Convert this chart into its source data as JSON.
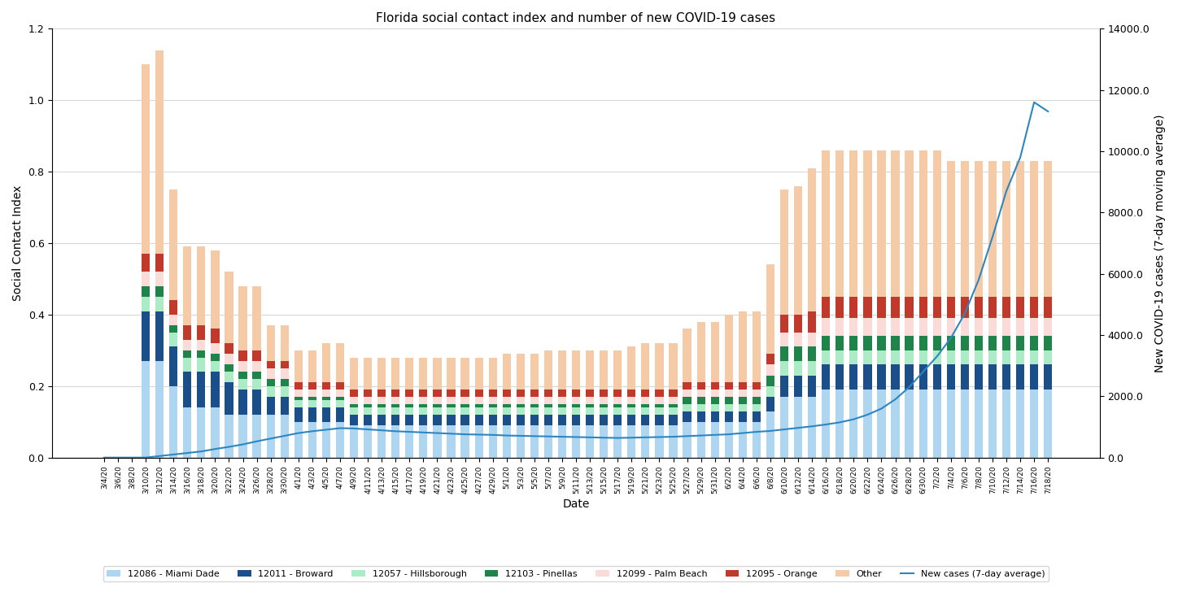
{
  "title": "Florida social contact index and number of new COVID-19 cases",
  "xlabel": "Date",
  "ylabel_left": "Social Contact Index",
  "ylabel_right": "New COVID-19 cases (7-day moving average)",
  "ylim_left": [
    0,
    1.2
  ],
  "ylim_right": [
    0,
    14000.0
  ],
  "yticks_left": [
    0,
    0.2,
    0.4,
    0.6,
    0.8,
    1.0,
    1.2
  ],
  "yticks_right": [
    0.0,
    2000.0,
    4000.0,
    6000.0,
    8000.0,
    10000.0,
    12000.0,
    14000.0
  ],
  "colors": {
    "miami_dade": "#AED6F1",
    "broward": "#1B4F8A",
    "hillsborough": "#ABEBC6",
    "pinellas": "#1E8449",
    "palm_beach": "#FADBD8",
    "orange": "#C0392B",
    "other": "#F5CBA7",
    "line": "#2E86C1"
  },
  "legend_labels": [
    "12086 - Miami Dade",
    "12011 - Broward",
    "12057 - Hillsborough",
    "12103 - Pinellas",
    "12099 - Palm Beach",
    "12095 - Orange",
    "Other",
    "New cases (7-day average)"
  ],
  "dates": [
    "3/4/20",
    "3/6/20",
    "3/8/20",
    "3/10/20",
    "3/12/20",
    "3/14/20",
    "3/16/20",
    "3/18/20",
    "3/20/20",
    "3/22/20",
    "3/24/20",
    "3/26/20",
    "3/28/20",
    "3/30/20",
    "4/1/20",
    "4/3/20",
    "4/5/20",
    "4/7/20",
    "4/9/20",
    "4/11/20",
    "4/13/20",
    "4/15/20",
    "4/17/20",
    "4/19/20",
    "4/21/20",
    "4/23/20",
    "4/25/20",
    "4/27/20",
    "4/29/20",
    "5/1/20",
    "5/3/20",
    "5/5/20",
    "5/7/20",
    "5/9/20",
    "5/11/20",
    "5/13/20",
    "5/15/20",
    "5/17/20",
    "5/19/20",
    "5/21/20",
    "5/23/20",
    "5/25/20",
    "5/27/20",
    "5/29/20",
    "5/31/20",
    "6/2/20",
    "6/4/20",
    "6/6/20",
    "6/8/20",
    "6/10/20",
    "6/12/20",
    "6/14/20",
    "6/16/20",
    "6/18/20",
    "6/20/20",
    "6/22/20",
    "6/24/20",
    "6/26/20",
    "6/28/20",
    "6/30/20",
    "7/2/20",
    "7/4/20",
    "7/6/20",
    "7/8/20",
    "7/10/20",
    "7/12/20",
    "7/14/20",
    "7/16/20",
    "7/18/20"
  ],
  "miami_dade": [
    0,
    0,
    0,
    0.27,
    0.27,
    0.2,
    0.14,
    0.14,
    0.14,
    0.12,
    0.12,
    0.12,
    0.12,
    0.12,
    0.1,
    0.1,
    0.1,
    0.1,
    0.09,
    0.09,
    0.09,
    0.09,
    0.09,
    0.09,
    0.09,
    0.09,
    0.09,
    0.09,
    0.09,
    0.09,
    0.09,
    0.09,
    0.09,
    0.09,
    0.09,
    0.09,
    0.09,
    0.09,
    0.09,
    0.09,
    0.09,
    0.09,
    0.1,
    0.1,
    0.1,
    0.1,
    0.1,
    0.1,
    0.13,
    0.17,
    0.17,
    0.17,
    0.19,
    0.19,
    0.19,
    0.19,
    0.19,
    0.19,
    0.19,
    0.19,
    0.19,
    0.19,
    0.19,
    0.19,
    0.19,
    0.19,
    0.19,
    0.19,
    0.19
  ],
  "broward": [
    0,
    0,
    0,
    0.14,
    0.14,
    0.11,
    0.1,
    0.1,
    0.1,
    0.09,
    0.07,
    0.07,
    0.05,
    0.05,
    0.04,
    0.04,
    0.04,
    0.04,
    0.03,
    0.03,
    0.03,
    0.03,
    0.03,
    0.03,
    0.03,
    0.03,
    0.03,
    0.03,
    0.03,
    0.03,
    0.03,
    0.03,
    0.03,
    0.03,
    0.03,
    0.03,
    0.03,
    0.03,
    0.03,
    0.03,
    0.03,
    0.03,
    0.03,
    0.03,
    0.03,
    0.03,
    0.03,
    0.03,
    0.04,
    0.06,
    0.06,
    0.06,
    0.07,
    0.07,
    0.07,
    0.07,
    0.07,
    0.07,
    0.07,
    0.07,
    0.07,
    0.07,
    0.07,
    0.07,
    0.07,
    0.07,
    0.07,
    0.07,
    0.07
  ],
  "hillsborough": [
    0,
    0,
    0,
    0.04,
    0.04,
    0.04,
    0.04,
    0.04,
    0.03,
    0.03,
    0.03,
    0.03,
    0.03,
    0.03,
    0.02,
    0.02,
    0.02,
    0.02,
    0.02,
    0.02,
    0.02,
    0.02,
    0.02,
    0.02,
    0.02,
    0.02,
    0.02,
    0.02,
    0.02,
    0.02,
    0.02,
    0.02,
    0.02,
    0.02,
    0.02,
    0.02,
    0.02,
    0.02,
    0.02,
    0.02,
    0.02,
    0.02,
    0.02,
    0.02,
    0.02,
    0.02,
    0.02,
    0.02,
    0.03,
    0.04,
    0.04,
    0.04,
    0.04,
    0.04,
    0.04,
    0.04,
    0.04,
    0.04,
    0.04,
    0.04,
    0.04,
    0.04,
    0.04,
    0.04,
    0.04,
    0.04,
    0.04,
    0.04,
    0.04
  ],
  "pinellas": [
    0,
    0,
    0,
    0.03,
    0.03,
    0.02,
    0.02,
    0.02,
    0.02,
    0.02,
    0.02,
    0.02,
    0.02,
    0.02,
    0.01,
    0.01,
    0.01,
    0.01,
    0.01,
    0.01,
    0.01,
    0.01,
    0.01,
    0.01,
    0.01,
    0.01,
    0.01,
    0.01,
    0.01,
    0.01,
    0.01,
    0.01,
    0.01,
    0.01,
    0.01,
    0.01,
    0.01,
    0.01,
    0.01,
    0.01,
    0.01,
    0.01,
    0.02,
    0.02,
    0.02,
    0.02,
    0.02,
    0.02,
    0.03,
    0.04,
    0.04,
    0.04,
    0.04,
    0.04,
    0.04,
    0.04,
    0.04,
    0.04,
    0.04,
    0.04,
    0.04,
    0.04,
    0.04,
    0.04,
    0.04,
    0.04,
    0.04,
    0.04,
    0.04
  ],
  "palm_beach": [
    0,
    0,
    0,
    0.04,
    0.04,
    0.03,
    0.03,
    0.03,
    0.03,
    0.03,
    0.03,
    0.03,
    0.03,
    0.03,
    0.02,
    0.02,
    0.02,
    0.02,
    0.02,
    0.02,
    0.02,
    0.02,
    0.02,
    0.02,
    0.02,
    0.02,
    0.02,
    0.02,
    0.02,
    0.02,
    0.02,
    0.02,
    0.02,
    0.02,
    0.02,
    0.02,
    0.02,
    0.02,
    0.02,
    0.02,
    0.02,
    0.02,
    0.02,
    0.02,
    0.02,
    0.02,
    0.02,
    0.02,
    0.03,
    0.04,
    0.04,
    0.04,
    0.05,
    0.05,
    0.05,
    0.05,
    0.05,
    0.05,
    0.05,
    0.05,
    0.05,
    0.05,
    0.05,
    0.05,
    0.05,
    0.05,
    0.05,
    0.05,
    0.05
  ],
  "orange": [
    0,
    0,
    0,
    0.05,
    0.05,
    0.04,
    0.04,
    0.04,
    0.04,
    0.03,
    0.03,
    0.03,
    0.02,
    0.02,
    0.02,
    0.02,
    0.02,
    0.02,
    0.02,
    0.02,
    0.02,
    0.02,
    0.02,
    0.02,
    0.02,
    0.02,
    0.02,
    0.02,
    0.02,
    0.02,
    0.02,
    0.02,
    0.02,
    0.02,
    0.02,
    0.02,
    0.02,
    0.02,
    0.02,
    0.02,
    0.02,
    0.02,
    0.02,
    0.02,
    0.02,
    0.02,
    0.02,
    0.02,
    0.03,
    0.05,
    0.05,
    0.06,
    0.06,
    0.06,
    0.06,
    0.06,
    0.06,
    0.06,
    0.06,
    0.06,
    0.06,
    0.06,
    0.06,
    0.06,
    0.06,
    0.06,
    0.06,
    0.06,
    0.06
  ],
  "other": [
    0,
    0,
    0,
    0.53,
    0.57,
    0.31,
    0.22,
    0.22,
    0.22,
    0.2,
    0.18,
    0.18,
    0.1,
    0.1,
    0.09,
    0.09,
    0.11,
    0.11,
    0.09,
    0.09,
    0.09,
    0.09,
    0.09,
    0.09,
    0.09,
    0.09,
    0.09,
    0.09,
    0.09,
    0.1,
    0.1,
    0.1,
    0.11,
    0.11,
    0.11,
    0.11,
    0.11,
    0.11,
    0.12,
    0.13,
    0.13,
    0.13,
    0.15,
    0.17,
    0.17,
    0.19,
    0.2,
    0.2,
    0.25,
    0.35,
    0.36,
    0.4,
    0.41,
    0.41,
    0.41,
    0.41,
    0.41,
    0.41,
    0.41,
    0.41,
    0.41,
    0.38,
    0.38,
    0.38,
    0.38,
    0.38,
    0.38,
    0.38,
    0.38
  ],
  "new_cases_7day": [
    0,
    0,
    0,
    0,
    50,
    100,
    150,
    200,
    280,
    350,
    430,
    530,
    620,
    710,
    800,
    860,
    910,
    960,
    950,
    920,
    890,
    860,
    840,
    820,
    800,
    780,
    760,
    750,
    740,
    720,
    710,
    700,
    690,
    680,
    670,
    660,
    650,
    640,
    650,
    660,
    670,
    680,
    700,
    720,
    740,
    760,
    800,
    840,
    870,
    920,
    970,
    1020,
    1080,
    1150,
    1250,
    1400,
    1600,
    1900,
    2300,
    2800,
    3300,
    3900,
    4700,
    5800,
    7200,
    8700,
    9800,
    11600,
    11300
  ]
}
